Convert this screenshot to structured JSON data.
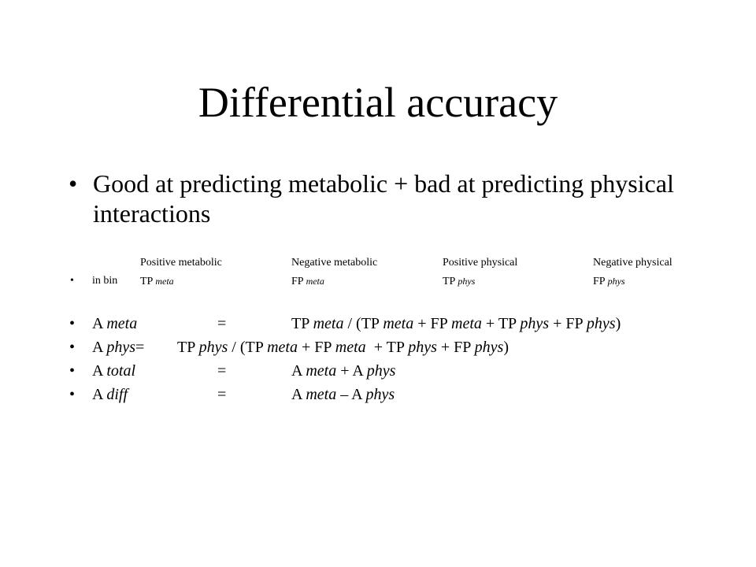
{
  "slide": {
    "title": "Differential accuracy",
    "main_bullet": {
      "glyph": "•",
      "text": "Good at predicting metabolic + bad at predicting physical interactions"
    },
    "table": {
      "headers": [
        "Positive metabolic",
        "Negative metabolic",
        "Positive physical",
        "Negative physical"
      ],
      "row": {
        "glyph": "•",
        "label": "in bin",
        "cells": [
          {
            "prefix": "TP ",
            "var": "meta"
          },
          {
            "prefix": "FP ",
            "var": "meta"
          },
          {
            "prefix": "TP ",
            "var": "phys"
          },
          {
            "prefix": "FP ",
            "var": "phys"
          }
        ]
      }
    },
    "formulas": [
      {
        "glyph": "•",
        "lhs_a": "A ",
        "lhs_var": "meta",
        "eq": "=",
        "rhs_parts": [
          {
            "t": "TP ",
            "i": false
          },
          {
            "t": "meta",
            "i": true
          },
          {
            "t": " / (TP ",
            "i": false
          },
          {
            "t": "meta",
            "i": true
          },
          {
            "t": " + FP ",
            "i": false
          },
          {
            "t": "meta",
            "i": true
          },
          {
            "t": " + TP ",
            "i": false
          },
          {
            "t": "phys",
            "i": true
          },
          {
            "t": " + FP ",
            "i": false
          },
          {
            "t": "phys",
            "i": true
          },
          {
            "t": ")",
            "i": false
          }
        ]
      },
      {
        "glyph": "•",
        "lhs_a": "A ",
        "lhs_var": "phys",
        "eq": "=",
        "rhs_parts": [
          {
            "t": "TP ",
            "i": false
          },
          {
            "t": "phys",
            "i": true
          },
          {
            "t": " / (TP ",
            "i": false
          },
          {
            "t": "meta",
            "i": true
          },
          {
            "t": " + FP ",
            "i": false
          },
          {
            "t": "meta",
            "i": true
          },
          {
            "t": "  + TP ",
            "i": false
          },
          {
            "t": "phys",
            "i": true
          },
          {
            "t": " + FP ",
            "i": false
          },
          {
            "t": "phys",
            "i": true
          },
          {
            "t": ")",
            "i": false
          }
        ]
      },
      {
        "glyph": "•",
        "lhs_a": "A ",
        "lhs_var": "total",
        "eq": "=",
        "rhs_parts": [
          {
            "t": "A ",
            "i": false
          },
          {
            "t": "meta",
            "i": true
          },
          {
            "t": " + A ",
            "i": false
          },
          {
            "t": "phys",
            "i": true
          }
        ]
      },
      {
        "glyph": "•",
        "lhs_a": "A ",
        "lhs_var": "diff",
        "eq": "=",
        "rhs_parts": [
          {
            "t": "A ",
            "i": false
          },
          {
            "t": "meta",
            "i": true
          },
          {
            "t": " – A ",
            "i": false
          },
          {
            "t": "phys",
            "i": true
          }
        ]
      }
    ]
  }
}
